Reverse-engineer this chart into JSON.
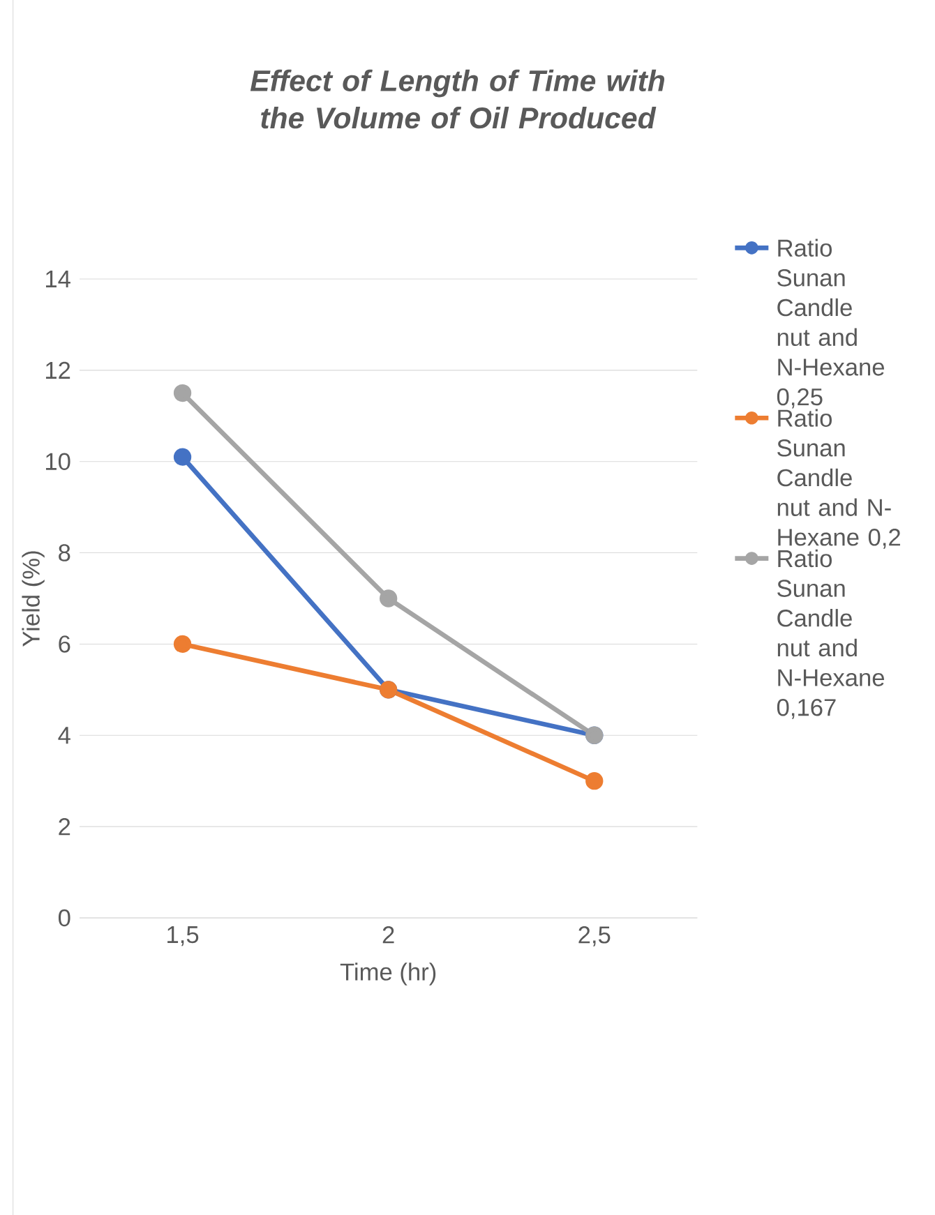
{
  "chart_data": {
    "type": "line",
    "title": "Effect of Length of Time with the Volume of Oil Produced",
    "xlabel": "Time (hr)",
    "ylabel": "Yield (%)",
    "categories": [
      "1,5",
      "2",
      "2,5"
    ],
    "series": [
      {
        "name": "Ratio Sunan Candle nut and N-Hexane 0,25",
        "color": "#4472c4",
        "values": [
          10.1,
          5,
          4
        ]
      },
      {
        "name": "Ratio Sunan Candle nut and N-Hexane 0,2",
        "color": "#ed7d31",
        "values": [
          6,
          5,
          3
        ]
      },
      {
        "name": "Ratio Sunan Candle nut and N-Hexane 0,167",
        "color": "#a5a5a5",
        "values": [
          11.5,
          7,
          4
        ]
      }
    ],
    "ylim": [
      0,
      14
    ],
    "yticks": [
      0,
      2,
      4,
      6,
      8,
      10,
      12,
      14
    ],
    "grid": "y",
    "legend": "right",
    "marker": "circle",
    "line_style": "solid"
  }
}
